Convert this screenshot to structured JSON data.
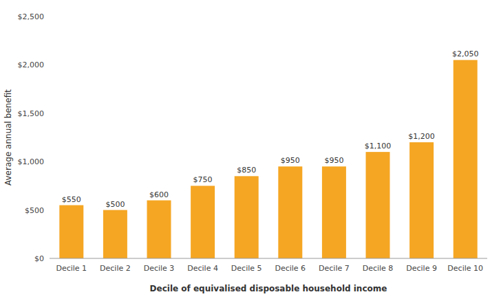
{
  "chart_data": {
    "type": "bar",
    "categories": [
      "Decile 1",
      "Decile 2",
      "Decile 3",
      "Decile 4",
      "Decile 5",
      "Decile 6",
      "Decile 7",
      "Decile 8",
      "Decile 9",
      "Decile 10"
    ],
    "values": [
      550,
      500,
      600,
      750,
      850,
      950,
      950,
      1100,
      1200,
      2050
    ],
    "value_labels": [
      "$550",
      "$500",
      "$600",
      "$750",
      "$850",
      "$950",
      "$950",
      "$1,100",
      "$1,200",
      "$2,050"
    ],
    "data_labels": true,
    "color": "#F5A623",
    "xlabel": "Decile of equivalised disposable household income",
    "ylabel": "Average annual benefit",
    "ylim": [
      0,
      2500
    ],
    "yticks": [
      {
        "value": 0,
        "label": "$0"
      },
      {
        "value": 500,
        "label": "$500"
      },
      {
        "value": 1000,
        "label": "$1,000"
      },
      {
        "value": 1500,
        "label": "$1,500"
      },
      {
        "value": 2000,
        "label": "$2,000"
      },
      {
        "value": 2500,
        "label": "$2,500"
      }
    ],
    "grid": false
  }
}
